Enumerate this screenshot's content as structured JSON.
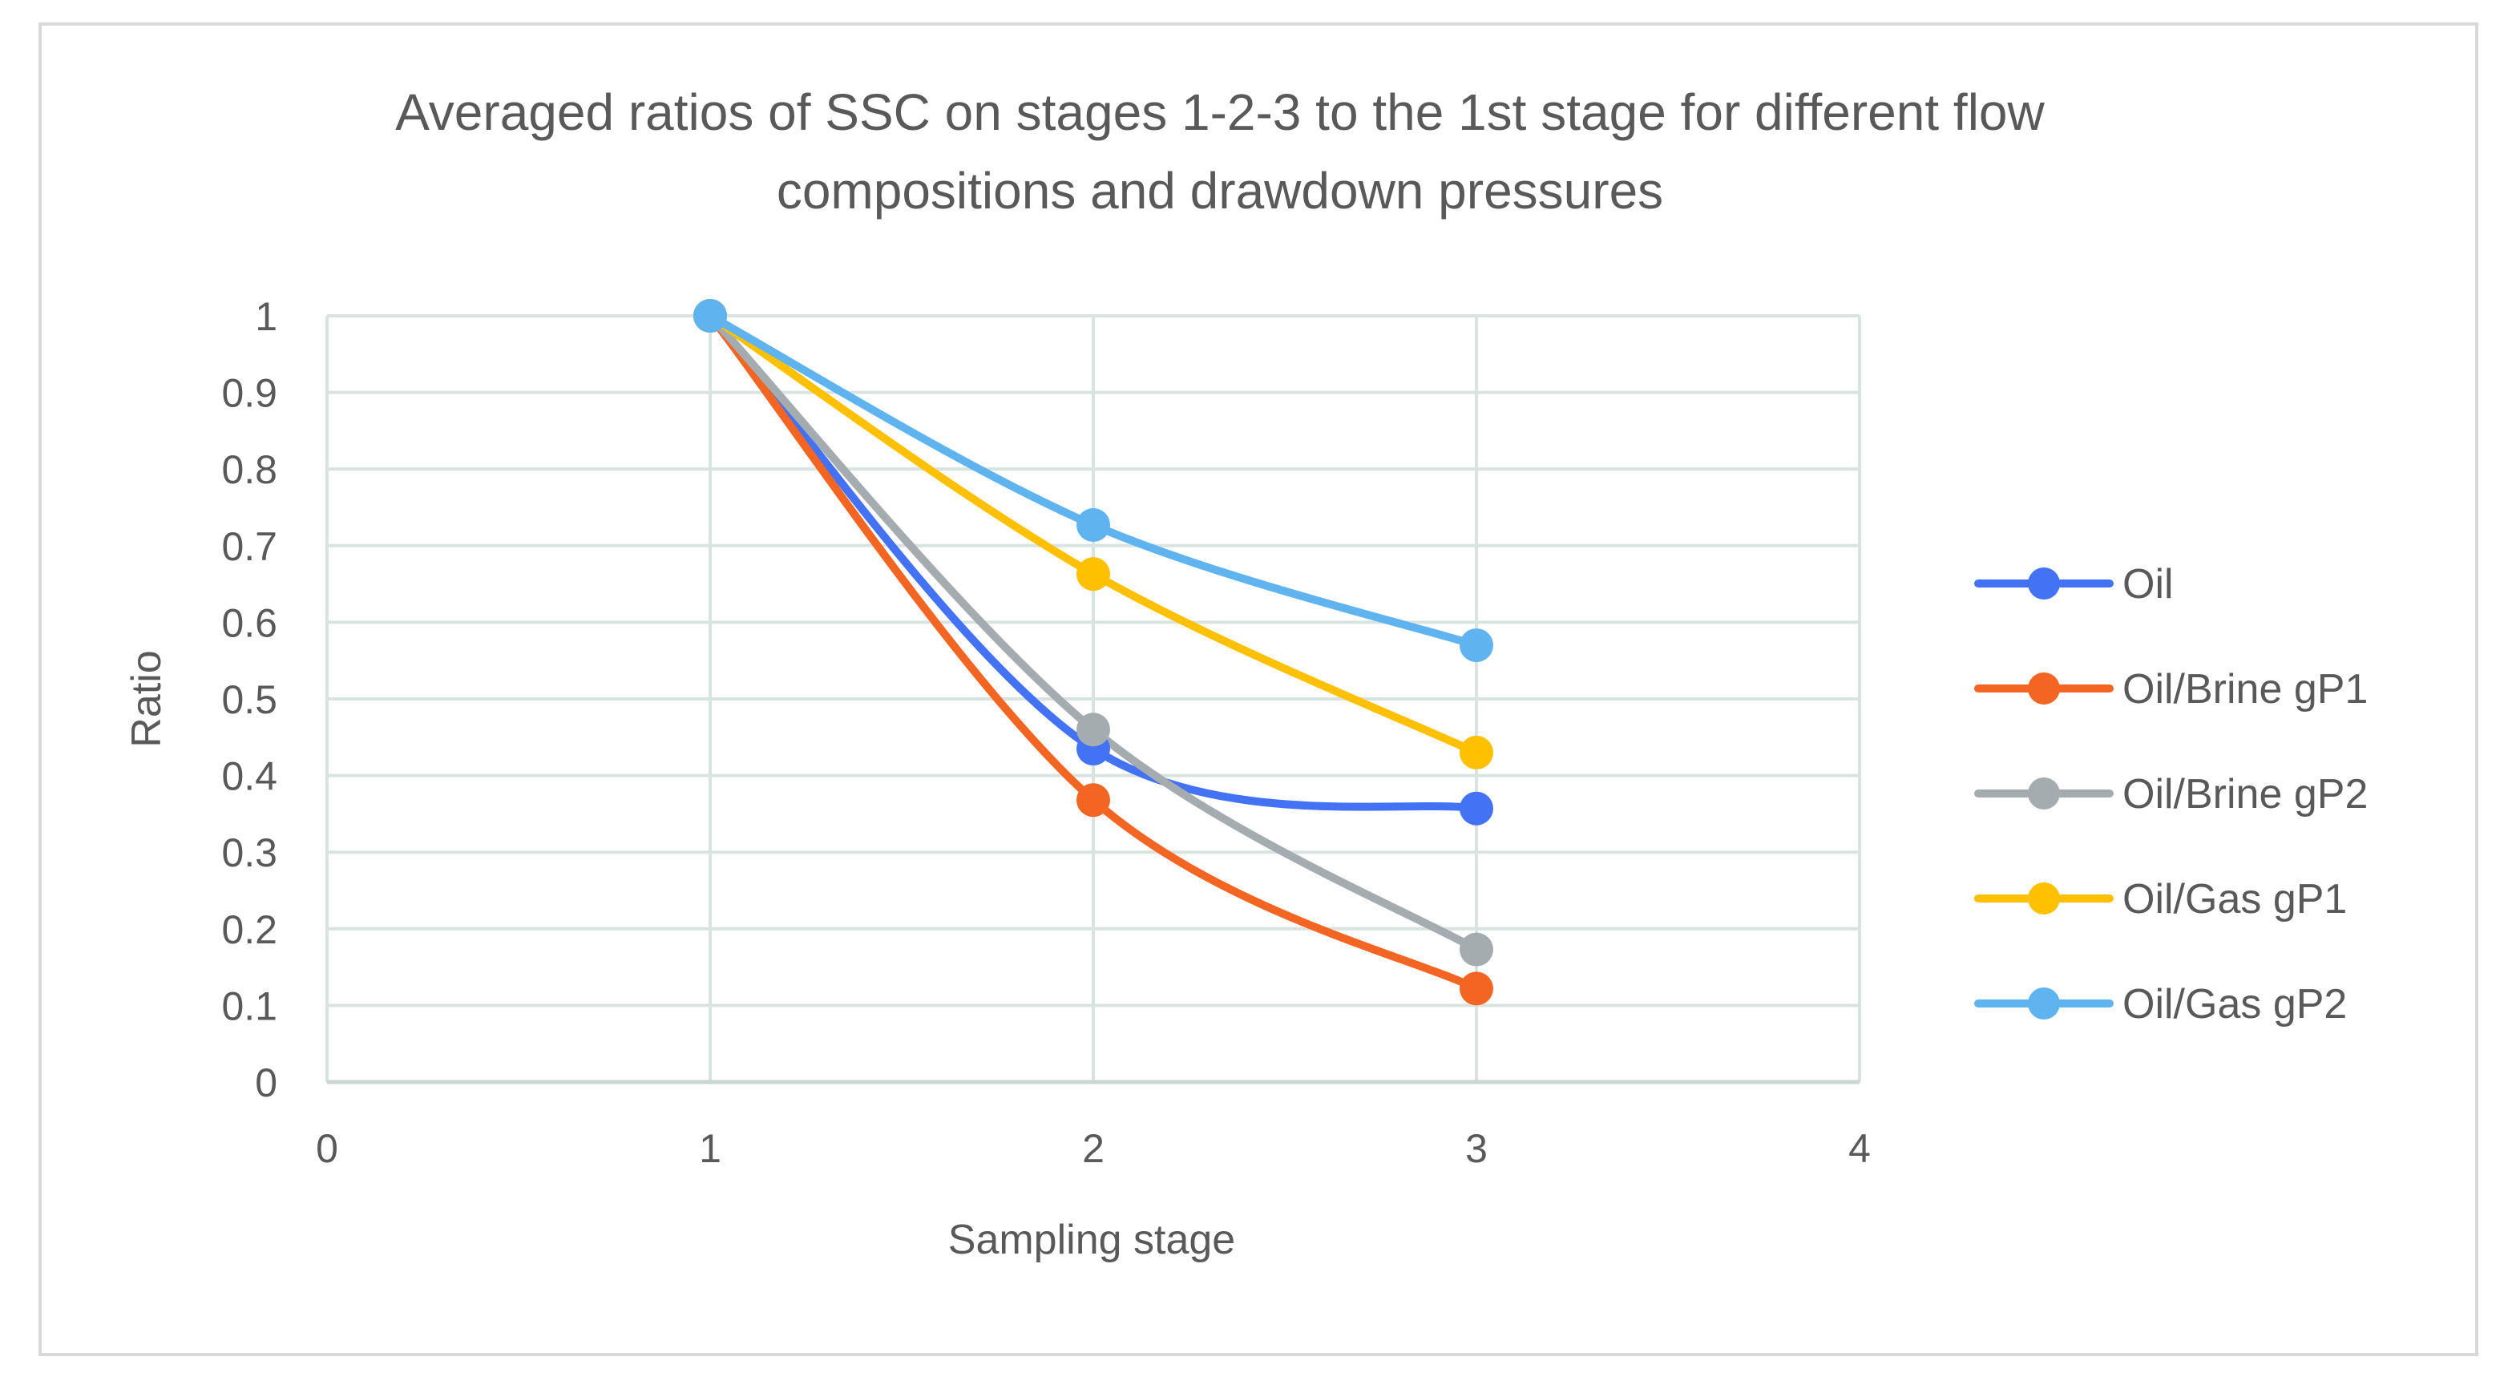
{
  "chart_data": {
    "type": "line",
    "title_lines": [
      "Averaged ratios of SSC on stages 1-2-3 to the 1st stage for different flow",
      "compositions and drawdown pressures"
    ],
    "xlabel": "Sampling stage",
    "ylabel": "Ratio",
    "xlim": [
      0,
      4
    ],
    "ylim": [
      0,
      1
    ],
    "x_ticks": [
      "0",
      "1",
      "2",
      "3",
      "4"
    ],
    "y_ticks": [
      "0",
      "0.1",
      "0.2",
      "0.3",
      "0.4",
      "0.5",
      "0.6",
      "0.7",
      "0.8",
      "0.9",
      "1"
    ],
    "grid": true,
    "legend_position": "right",
    "smooth": true,
    "series": [
      {
        "name": "Oil",
        "color": "#4472f4",
        "x": [
          1,
          2,
          3
        ],
        "values": [
          1.0,
          0.435,
          0.357
        ]
      },
      {
        "name": "Oil/Brine gP1",
        "color": "#f26522",
        "x": [
          1,
          2,
          3
        ],
        "values": [
          1.0,
          0.368,
          0.122
        ]
      },
      {
        "name": "Oil/Brine gP2",
        "color": "#a5acaf",
        "x": [
          1,
          2,
          3
        ],
        "values": [
          1.0,
          0.46,
          0.173
        ]
      },
      {
        "name": "Oil/Gas gP1",
        "color": "#ffc000",
        "x": [
          1,
          2,
          3
        ],
        "values": [
          1.0,
          0.663,
          0.43
        ]
      },
      {
        "name": "Oil/Gas gP2",
        "color": "#5fb4f0",
        "x": [
          1,
          2,
          3
        ],
        "values": [
          1.0,
          0.727,
          0.57
        ]
      }
    ]
  }
}
